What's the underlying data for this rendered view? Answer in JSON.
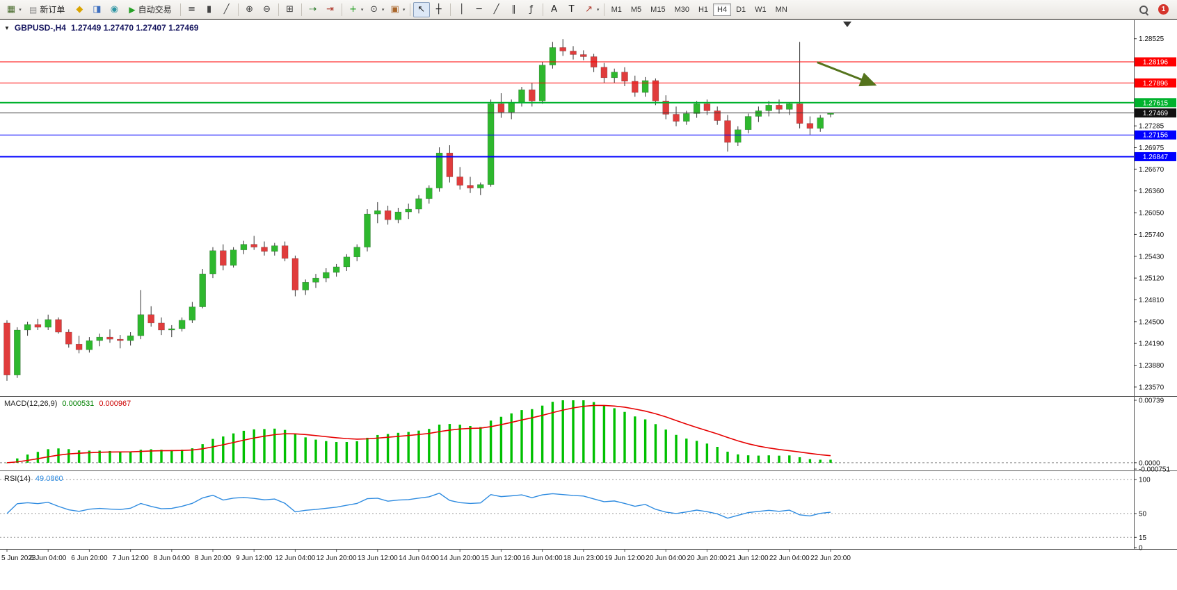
{
  "toolbar": {
    "items": [
      {
        "name": "new-chart-icon",
        "type": "icon",
        "glyph": "▦",
        "color": "#4a6d2f",
        "dropdown": true
      },
      {
        "name": "new-order-button",
        "type": "button",
        "label": "新订单",
        "glyph": "▤",
        "glyph_color": "#8a8a8a"
      },
      {
        "name": "metaeditor-icon",
        "type": "icon",
        "glyph": "◆",
        "color": "#d9a400"
      },
      {
        "name": "profiles-icon",
        "type": "icon",
        "glyph": "◨",
        "color": "#3e6fbf"
      },
      {
        "name": "support-icon",
        "type": "icon",
        "glyph": "◉",
        "color": "#2e95a3"
      },
      {
        "name": "autotrading-button",
        "type": "button",
        "label": "自动交易",
        "glyph": "▶",
        "glyph_color": "#27a127"
      },
      {
        "type": "sep"
      },
      {
        "name": "bar-chart-icon",
        "type": "icon",
        "glyph": "≡",
        "color": "#444444"
      },
      {
        "name": "candlestick-chart-icon",
        "type": "icon",
        "glyph": "▮",
        "color": "#444444"
      },
      {
        "name": "line-chart-icon",
        "type": "icon",
        "glyph": "╱",
        "color": "#444444"
      },
      {
        "type": "sep"
      },
      {
        "name": "zoom-in-icon",
        "type": "icon",
        "glyph": "⊕",
        "color": "#444444"
      },
      {
        "name": "zoom-out-icon",
        "type": "icon",
        "glyph": "⊖",
        "color": "#444444"
      },
      {
        "type": "sep"
      },
      {
        "name": "tile-windows-icon",
        "type": "icon",
        "glyph": "⊞",
        "color": "#444444"
      },
      {
        "type": "sep"
      },
      {
        "name": "auto-scroll-icon",
        "type": "icon",
        "glyph": "⇢",
        "color": "#2a7a2a"
      },
      {
        "name": "chart-shift-icon",
        "type": "icon",
        "glyph": "⇥",
        "color": "#b03a2e"
      },
      {
        "type": "sep"
      },
      {
        "name": "indicators-icon",
        "type": "icon",
        "glyph": "+",
        "color": "#1f9d1f",
        "dropdown": true
      },
      {
        "name": "periods-icon",
        "type": "icon",
        "glyph": "⊙",
        "color": "#444444",
        "dropdown": true
      },
      {
        "name": "templates-icon",
        "type": "icon",
        "glyph": "▣",
        "color": "#a9662b",
        "dropdown": true
      },
      {
        "type": "sep"
      },
      {
        "name": "cursor-icon",
        "type": "icon",
        "glyph": "↖",
        "color": "#222222",
        "active": true
      },
      {
        "name": "crosshair-icon",
        "type": "icon",
        "glyph": "┼",
        "color": "#222222"
      },
      {
        "type": "sep"
      },
      {
        "name": "vertical-line-icon",
        "type": "icon",
        "glyph": "│",
        "color": "#333333"
      },
      {
        "name": "horizontal-line-icon",
        "type": "icon",
        "glyph": "─",
        "color": "#333333"
      },
      {
        "name": "trendline-icon",
        "type": "icon",
        "glyph": "╱",
        "color": "#333333"
      },
      {
        "name": "channel-icon",
        "type": "icon",
        "glyph": "∥",
        "color": "#333333"
      },
      {
        "name": "fibonacci-icon",
        "type": "icon",
        "glyph": "ƒ",
        "color": "#333333"
      },
      {
        "type": "sep"
      },
      {
        "name": "text-icon",
        "type": "icon",
        "glyph": "A",
        "color": "#222222"
      },
      {
        "name": "text-label-icon",
        "type": "icon",
        "glyph": "T",
        "color": "#222222"
      },
      {
        "name": "arrows-icon",
        "type": "icon",
        "glyph": "↗",
        "color": "#b03a2e",
        "dropdown": true
      },
      {
        "type": "sep"
      },
      {
        "type": "tf-group"
      },
      {
        "type": "spacer"
      },
      {
        "name": "search-icon",
        "type": "search"
      },
      {
        "name": "notification-badge",
        "type": "badge",
        "label": "1",
        "color": "#d5352c"
      }
    ],
    "timeframes": [
      "M1",
      "M5",
      "M15",
      "M30",
      "H1",
      "H4",
      "D1",
      "W1",
      "MN"
    ],
    "active_timeframe": "H4",
    "notification_count": "1"
  },
  "chart": {
    "symbol_title": "GBPUSD-,H4",
    "ohlc_text": "1.27449 1.27470 1.27407 1.27469"
  },
  "chart_data": [
    {
      "type": "candlestick",
      "symbol": "GBPUSD-",
      "timeframe": "H4",
      "ohlc_current": {
        "open": 1.27449,
        "high": 1.2747,
        "low": 1.27407,
        "close": 1.27469
      },
      "ylim": [
        1.235,
        1.2872
      ],
      "colors": {
        "bull": "#2eb82e",
        "bear": "#e03c3c",
        "wick": "#333333"
      },
      "y_ticks": [
        {
          "label": "1.28525",
          "value": 1.28525
        },
        {
          "label": "1.27285",
          "value": 1.27285
        },
        {
          "label": "1.26975",
          "value": 1.26975
        },
        {
          "label": "1.26670",
          "value": 1.2667
        },
        {
          "label": "1.26360",
          "value": 1.2636
        },
        {
          "label": "1.26050",
          "value": 1.2605
        },
        {
          "label": "1.25740",
          "value": 1.2574
        },
        {
          "label": "1.25430",
          "value": 1.2543
        },
        {
          "label": "1.25120",
          "value": 1.2512
        },
        {
          "label": "1.24810",
          "value": 1.2481
        },
        {
          "label": "1.24500",
          "value": 1.245
        },
        {
          "label": "1.24190",
          "value": 1.2419
        },
        {
          "label": "1.23880",
          "value": 1.2388
        },
        {
          "label": "1.23570",
          "value": 1.2357
        }
      ],
      "hlines": [
        {
          "label": "1.28196",
          "value": 1.28196,
          "color": "#ff0000",
          "width": 1,
          "name": "resistance-line-upper"
        },
        {
          "label": "1.27896",
          "value": 1.27896,
          "color": "#ff0000",
          "width": 1,
          "name": "resistance-line-lower"
        },
        {
          "label": "1.27615",
          "value": 1.27615,
          "color": "#00b22d",
          "width": 2,
          "name": "support-line-green"
        },
        {
          "label": "1.27469",
          "value": 1.27469,
          "color": "#333333",
          "width": 1,
          "name": "current-price-line",
          "box": "#111111"
        },
        {
          "label": "1.27156",
          "value": 1.27156,
          "color": "#0000ff",
          "width": 1,
          "name": "support-line-blue-upper"
        },
        {
          "label": "1.26847",
          "value": 1.26847,
          "color": "#0000ff",
          "width": 2,
          "name": "support-line-blue-lower"
        }
      ],
      "arrow": {
        "i1": 78.7,
        "p1": 1.2819,
        "i2": 84.3,
        "p2": 1.2787,
        "color": "#55741d"
      },
      "x_labels": [
        {
          "i": 0,
          "t": "5 Jun 2023"
        },
        {
          "i": 4,
          "t": "6 Jun 04:00"
        },
        {
          "i": 8,
          "t": "6 Jun 20:00"
        },
        {
          "i": 12,
          "t": "7 Jun 12:00"
        },
        {
          "i": 16,
          "t": "8 Jun 04:00"
        },
        {
          "i": 20,
          "t": "8 Jun 20:00"
        },
        {
          "i": 24,
          "t": "9 Jun 12:00"
        },
        {
          "i": 28,
          "t": "12 Jun 04:00"
        },
        {
          "i": 32,
          "t": "12 Jun 20:00"
        },
        {
          "i": 36,
          "t": "13 Jun 12:00"
        },
        {
          "i": 40,
          "t": "14 Jun 04:00"
        },
        {
          "i": 44,
          "t": "14 Jun 20:00"
        },
        {
          "i": 48,
          "t": "15 Jun 12:00"
        },
        {
          "i": 52,
          "t": "16 Jun 04:00"
        },
        {
          "i": 56,
          "t": "18 Jun 23:00"
        },
        {
          "i": 60,
          "t": "19 Jun 12:00"
        },
        {
          "i": 64,
          "t": "20 Jun 04:00"
        },
        {
          "i": 68,
          "t": "20 Jun 20:00"
        },
        {
          "i": 72,
          "t": "21 Jun 12:00"
        },
        {
          "i": 76,
          "t": "22 Jun 04:00"
        },
        {
          "i": 80,
          "t": "22 Jun 20:00"
        }
      ],
      "candles": [
        [
          1.2448,
          1.2452,
          1.2366,
          1.2374
        ],
        [
          1.2374,
          1.2442,
          1.237,
          1.2438
        ],
        [
          1.2438,
          1.245,
          1.243,
          1.2446
        ],
        [
          1.2446,
          1.2454,
          1.2438,
          1.2442
        ],
        [
          1.2442,
          1.246,
          1.2438,
          1.2453
        ],
        [
          1.2453,
          1.2456,
          1.2433,
          1.2435
        ],
        [
          1.2435,
          1.2439,
          1.2413,
          1.2418
        ],
        [
          1.2418,
          1.243,
          1.2405,
          1.241
        ],
        [
          1.241,
          1.2428,
          1.2406,
          1.2423
        ],
        [
          1.2423,
          1.2433,
          1.2415,
          1.2428
        ],
        [
          1.2428,
          1.2439,
          1.242,
          1.2425
        ],
        [
          1.2425,
          1.2431,
          1.2412,
          1.2423
        ],
        [
          1.2423,
          1.2435,
          1.2416,
          1.243
        ],
        [
          1.243,
          1.2495,
          1.2425,
          1.246
        ],
        [
          1.246,
          1.2472,
          1.2443,
          1.2448
        ],
        [
          1.2448,
          1.2456,
          1.2431,
          1.2438
        ],
        [
          1.2438,
          1.2445,
          1.2428,
          1.244
        ],
        [
          1.244,
          1.2456,
          1.2436,
          1.2452
        ],
        [
          1.2452,
          1.2478,
          1.2448,
          1.2471
        ],
        [
          1.2471,
          1.2525,
          1.2469,
          1.2518
        ],
        [
          1.2518,
          1.2556,
          1.2512,
          1.2551
        ],
        [
          1.2551,
          1.256,
          1.2523,
          1.253
        ],
        [
          1.253,
          1.2556,
          1.2527,
          1.2552
        ],
        [
          1.2552,
          1.2565,
          1.2546,
          1.256
        ],
        [
          1.256,
          1.2572,
          1.2552,
          1.2556
        ],
        [
          1.2556,
          1.2564,
          1.2544,
          1.255
        ],
        [
          1.255,
          1.2562,
          1.2544,
          1.2558
        ],
        [
          1.2558,
          1.2564,
          1.2536,
          1.254
        ],
        [
          1.254,
          1.2544,
          1.2486,
          1.2495
        ],
        [
          1.2495,
          1.251,
          1.2488,
          1.2506
        ],
        [
          1.2506,
          1.2518,
          1.2498,
          1.2512
        ],
        [
          1.2512,
          1.2526,
          1.2506,
          1.252
        ],
        [
          1.252,
          1.2532,
          1.2514,
          1.2528
        ],
        [
          1.2528,
          1.2546,
          1.2522,
          1.2542
        ],
        [
          1.2542,
          1.256,
          1.2536,
          1.2556
        ],
        [
          1.2556,
          1.261,
          1.255,
          1.2603
        ],
        [
          1.2603,
          1.262,
          1.259,
          1.2608
        ],
        [
          1.2608,
          1.2615,
          1.2588,
          1.2595
        ],
        [
          1.2595,
          1.2612,
          1.259,
          1.2606
        ],
        [
          1.2606,
          1.2618,
          1.2596,
          1.261
        ],
        [
          1.261,
          1.263,
          1.2604,
          1.2625
        ],
        [
          1.2625,
          1.2644,
          1.2618,
          1.264
        ],
        [
          1.264,
          1.2698,
          1.2635,
          1.269
        ],
        [
          1.269,
          1.2701,
          1.2648,
          1.2656
        ],
        [
          1.2656,
          1.267,
          1.2638,
          1.2644
        ],
        [
          1.2644,
          1.2656,
          1.2633,
          1.264
        ],
        [
          1.264,
          1.2648,
          1.263,
          1.2645
        ],
        [
          1.2645,
          1.2766,
          1.2642,
          1.276
        ],
        [
          1.276,
          1.2775,
          1.274,
          1.2748
        ],
        [
          1.2748,
          1.2766,
          1.2738,
          1.2762
        ],
        [
          1.2762,
          1.2784,
          1.2756,
          1.278
        ],
        [
          1.278,
          1.279,
          1.2756,
          1.2764
        ],
        [
          1.2764,
          1.282,
          1.276,
          1.2815
        ],
        [
          1.2815,
          1.2848,
          1.281,
          1.284
        ],
        [
          1.284,
          1.2852,
          1.2828,
          1.2835
        ],
        [
          1.2835,
          1.2842,
          1.2823,
          1.283
        ],
        [
          1.283,
          1.2836,
          1.2822,
          1.2827
        ],
        [
          1.2827,
          1.2831,
          1.2805,
          1.2812
        ],
        [
          1.2812,
          1.2818,
          1.279,
          1.2797
        ],
        [
          1.2797,
          1.281,
          1.279,
          1.2805
        ],
        [
          1.2805,
          1.2812,
          1.2785,
          1.2792
        ],
        [
          1.2792,
          1.28,
          1.277,
          1.2776
        ],
        [
          1.2776,
          1.2798,
          1.277,
          1.2793
        ],
        [
          1.2793,
          1.2796,
          1.2758,
          1.2764
        ],
        [
          1.2764,
          1.2772,
          1.2738,
          1.2745
        ],
        [
          1.2745,
          1.2756,
          1.2728,
          1.2735
        ],
        [
          1.2735,
          1.275,
          1.273,
          1.2746
        ],
        [
          1.2746,
          1.2764,
          1.274,
          1.276
        ],
        [
          1.276,
          1.2766,
          1.2744,
          1.275
        ],
        [
          1.275,
          1.2756,
          1.273,
          1.2736
        ],
        [
          1.2736,
          1.2744,
          1.2692,
          1.2705
        ],
        [
          1.2705,
          1.2728,
          1.27,
          1.2723
        ],
        [
          1.2723,
          1.2746,
          1.2718,
          1.2742
        ],
        [
          1.2742,
          1.2756,
          1.2734,
          1.275
        ],
        [
          1.275,
          1.2764,
          1.2742,
          1.2758
        ],
        [
          1.2758,
          1.2766,
          1.2746,
          1.2752
        ],
        [
          1.2752,
          1.2762,
          1.2744,
          1.276
        ],
        [
          1.276,
          1.2848,
          1.2725,
          1.2732
        ],
        [
          1.2732,
          1.2742,
          1.2716,
          1.2725
        ],
        [
          1.2725,
          1.2744,
          1.272,
          1.274
        ],
        [
          1.27449,
          1.2747,
          1.27407,
          1.27469
        ]
      ]
    },
    {
      "type": "macd",
      "label": "MACD(12,26,9)",
      "value_main": "0.000531",
      "value_signal": "0.000967",
      "params": {
        "fast": 12,
        "slow": 26,
        "signal": 9
      },
      "ylim": [
        -0.000751,
        0.00739
      ],
      "y_ticks": [
        {
          "label": "0.00739",
          "value": 0.00739
        },
        {
          "label": "0.0000",
          "value": 0
        },
        {
          "label": "-0.000751",
          "value": -0.000751
        }
      ],
      "colors": {
        "histogram": "#00c000",
        "signal": "#e60000"
      }
    },
    {
      "type": "rsi",
      "label": "RSI(14)",
      "value": "49.0860",
      "period": 14,
      "ylim": [
        0,
        100
      ],
      "levels": [
        100,
        50,
        15
      ],
      "y_ticks": [
        {
          "label": "100",
          "value": 100
        },
        {
          "label": "50",
          "value": 50
        },
        {
          "label": "15",
          "value": 15
        },
        {
          "label": "0",
          "value": 0
        }
      ],
      "color": "#2e8be0"
    }
  ]
}
